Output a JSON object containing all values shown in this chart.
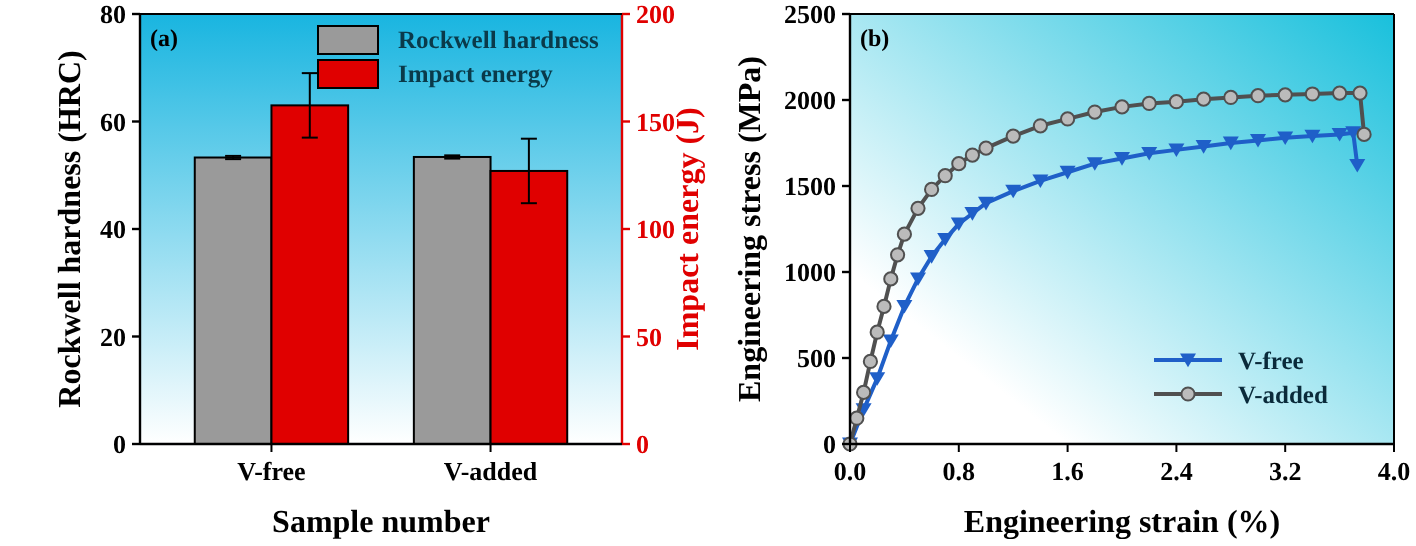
{
  "chart_data": [
    {
      "type": "bar",
      "xlabel": "Sample number",
      "ylabel": "Rockwell hardness (HRC)",
      "y2label": "Impact energy (J)",
      "categories": [
        "V-free",
        "V-added"
      ],
      "series": [
        {
          "name": "Rockwell hardness",
          "color": "#9a9a9a",
          "values": [
            53.3,
            53.4
          ],
          "errors": [
            0.3,
            0.3
          ]
        },
        {
          "name": "Impact energy",
          "color": "#e00000",
          "values": [
            157.5,
            127
          ],
          "errors": [
            15,
            15
          ],
          "axis": "y2"
        }
      ],
      "ylim": [
        0,
        80
      ],
      "yticks": [
        0,
        20,
        40,
        60,
        80
      ],
      "y2lim": [
        0,
        200
      ],
      "y2ticks": [
        0,
        50,
        100,
        150,
        200
      ],
      "legend": "top right",
      "annotations": [
        "(a)"
      ]
    },
    {
      "type": "line",
      "xlabel": "Engineering strain (%)",
      "ylabel": "Engineering stress (MPa)",
      "series": [
        {
          "name": "V-free",
          "color": "#1f5fc8",
          "marker": "triangle",
          "x": [
            0,
            0.1,
            0.2,
            0.3,
            0.4,
            0.5,
            0.6,
            0.7,
            0.8,
            0.9,
            1.0,
            1.2,
            1.4,
            1.6,
            1.8,
            2.0,
            2.2,
            2.4,
            2.6,
            2.8,
            3.0,
            3.2,
            3.4,
            3.6,
            3.7,
            3.73
          ],
          "values": [
            0,
            200,
            380,
            600,
            800,
            960,
            1090,
            1190,
            1280,
            1340,
            1400,
            1470,
            1530,
            1580,
            1630,
            1660,
            1690,
            1710,
            1730,
            1750,
            1765,
            1780,
            1790,
            1800,
            1810,
            1620
          ]
        },
        {
          "name": "V-added",
          "color": "#505050",
          "marker": "circle",
          "x": [
            0,
            0.05,
            0.1,
            0.15,
            0.2,
            0.25,
            0.3,
            0.35,
            0.4,
            0.5,
            0.6,
            0.7,
            0.8,
            0.9,
            1.0,
            1.2,
            1.4,
            1.6,
            1.8,
            2.0,
            2.2,
            2.4,
            2.6,
            2.8,
            3.0,
            3.2,
            3.4,
            3.6,
            3.75,
            3.78
          ],
          "values": [
            0,
            150,
            300,
            480,
            650,
            800,
            960,
            1100,
            1220,
            1370,
            1480,
            1560,
            1630,
            1680,
            1720,
            1790,
            1850,
            1890,
            1930,
            1960,
            1980,
            1990,
            2005,
            2015,
            2025,
            2030,
            2035,
            2040,
            2040,
            1800
          ]
        }
      ],
      "xlim": [
        0,
        4
      ],
      "xticks": [
        {
          "value": 0,
          "label": "0.0"
        },
        0.8,
        1.6,
        2.4,
        3.2,
        {
          "value": 4,
          "label": "4.0"
        }
      ],
      "ylim": [
        0,
        2500
      ],
      "yticks": [
        0,
        500,
        1000,
        1500,
        2000,
        2500
      ],
      "legend": "bottom right",
      "annotations": [
        "(b)"
      ]
    }
  ]
}
